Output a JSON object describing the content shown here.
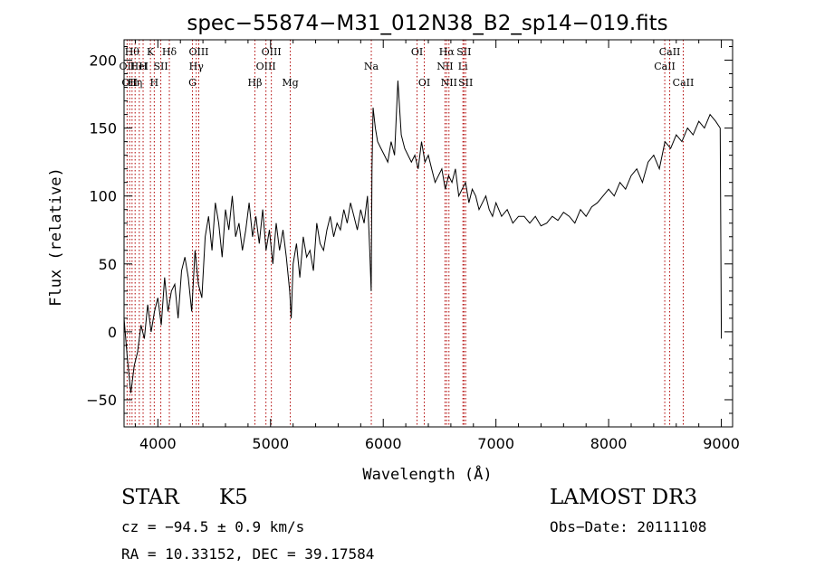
{
  "chart_data": {
    "type": "line",
    "title": "spec−55874−M31_012N38_B2_sp14−019.fits",
    "xlabel": "Wavelength (Å)",
    "ylabel": "Flux (relative)",
    "xlim": [
      3700,
      9100
    ],
    "ylim": [
      -70,
      215
    ],
    "xticks": [
      4000,
      5000,
      6000,
      7000,
      8000,
      9000
    ],
    "yticks": [
      -50,
      0,
      50,
      100,
      150,
      200
    ],
    "grid": false,
    "series": [
      {
        "x": [
          3700,
          3730,
          3760,
          3790,
          3820,
          3850,
          3880,
          3910,
          3940,
          3970,
          4000,
          4030,
          4060,
          4090,
          4120,
          4150,
          4180,
          4210,
          4240,
          4270,
          4300,
          4330,
          4360,
          4390,
          4420,
          4450,
          4480,
          4510,
          4540,
          4570,
          4600,
          4630,
          4660,
          4690,
          4720,
          4750,
          4780,
          4810,
          4840,
          4870,
          4900,
          4930,
          4960,
          4990,
          5020,
          5050,
          5080,
          5110,
          5140,
          5170,
          5183,
          5200,
          5230,
          5260,
          5290,
          5320,
          5350,
          5380,
          5410,
          5440,
          5470,
          5500,
          5530,
          5560,
          5590,
          5620,
          5650,
          5680,
          5710,
          5740,
          5770,
          5800,
          5830,
          5860,
          5880,
          5893,
          5900,
          5910,
          5930,
          5950,
          5980,
          6010,
          6040,
          6070,
          6100,
          6130,
          6160,
          6190,
          6220,
          6250,
          6280,
          6310,
          6340,
          6370,
          6400,
          6430,
          6460,
          6490,
          6520,
          6550,
          6580,
          6610,
          6640,
          6670,
          6700,
          6730,
          6760,
          6790,
          6820,
          6850,
          6880,
          6910,
          6940,
          6970,
          7000,
          7050,
          7100,
          7150,
          7200,
          7250,
          7300,
          7350,
          7400,
          7450,
          7500,
          7550,
          7600,
          7650,
          7700,
          7750,
          7800,
          7850,
          7900,
          7950,
          8000,
          8050,
          8100,
          8150,
          8200,
          8250,
          8300,
          8350,
          8400,
          8450,
          8500,
          8550,
          8600,
          8650,
          8700,
          8750,
          8800,
          8850,
          8900,
          8950,
          8990,
          9000
        ],
        "y": [
          10,
          -20,
          -45,
          -25,
          -15,
          5,
          -5,
          20,
          0,
          15,
          25,
          5,
          40,
          15,
          30,
          35,
          10,
          45,
          55,
          40,
          15,
          60,
          35,
          25,
          70,
          85,
          60,
          95,
          80,
          55,
          90,
          75,
          100,
          70,
          80,
          60,
          75,
          95,
          70,
          85,
          65,
          90,
          60,
          75,
          50,
          80,
          60,
          75,
          55,
          30,
          10,
          50,
          65,
          40,
          70,
          55,
          60,
          45,
          80,
          65,
          60,
          75,
          85,
          70,
          80,
          75,
          90,
          80,
          95,
          85,
          75,
          90,
          80,
          100,
          60,
          30,
          120,
          165,
          150,
          140,
          135,
          130,
          125,
          140,
          130,
          185,
          145,
          135,
          130,
          125,
          130,
          120,
          140,
          125,
          130,
          120,
          110,
          115,
          120,
          105,
          115,
          110,
          120,
          100,
          105,
          110,
          95,
          105,
          100,
          90,
          95,
          100,
          90,
          85,
          95,
          85,
          90,
          80,
          85,
          85,
          80,
          85,
          78,
          80,
          85,
          82,
          88,
          85,
          80,
          90,
          85,
          92,
          95,
          100,
          105,
          100,
          110,
          105,
          115,
          120,
          110,
          125,
          130,
          120,
          140,
          135,
          145,
          140,
          150,
          145,
          155,
          150,
          160,
          155,
          150,
          -5
        ]
      }
    ],
    "lines": [
      {
        "w": 3727,
        "label": "OII",
        "row": 1
      },
      {
        "w": 3750,
        "label": "OII",
        "row": 2
      },
      {
        "w": 3771,
        "label": "Hθ",
        "row": 0
      },
      {
        "w": 3798,
        "label": "Hη",
        "row": 2
      },
      {
        "w": 3835,
        "label": "HeI",
        "row": 1
      },
      {
        "w": 3869,
        "label": "H",
        "row": 1
      },
      {
        "w": 3934,
        "label": "K",
        "row": 0
      },
      {
        "w": 3968,
        "label": "H",
        "row": 2
      },
      {
        "w": 4026,
        "label": "SII",
        "row": 1
      },
      {
        "w": 4102,
        "label": "Hδ",
        "row": 0
      },
      {
        "w": 4307,
        "label": "G",
        "row": 2
      },
      {
        "w": 4341,
        "label": "Hγ",
        "row": 1
      },
      {
        "w": 4363,
        "label": "OIII",
        "row": 0
      },
      {
        "w": 4861,
        "label": "Hβ",
        "row": 2
      },
      {
        "w": 4959,
        "label": "OIII",
        "row": 1
      },
      {
        "w": 5007,
        "label": "OIII",
        "row": 0
      },
      {
        "w": 5175,
        "label": "Mg",
        "row": 2
      },
      {
        "w": 5894,
        "label": "Na",
        "row": 1
      },
      {
        "w": 6300,
        "label": "OI",
        "row": 0
      },
      {
        "w": 6364,
        "label": "OI",
        "row": 2
      },
      {
        "w": 6548,
        "label": "NII",
        "row": 1
      },
      {
        "w": 6563,
        "label": "Hα",
        "row": 0
      },
      {
        "w": 6583,
        "label": "NII",
        "row": 2
      },
      {
        "w": 6707,
        "label": "Li",
        "row": 1
      },
      {
        "w": 6716,
        "label": "SII",
        "row": 0
      },
      {
        "w": 6731,
        "label": "SII",
        "row": 2
      },
      {
        "w": 8498,
        "label": "CaII",
        "row": 1
      },
      {
        "w": 8542,
        "label": "CaII",
        "row": 0
      },
      {
        "w": 8662,
        "label": "CaII",
        "row": 2
      }
    ]
  },
  "info": {
    "class": "STAR",
    "subclass": "K5",
    "survey": "LAMOST DR3",
    "redshift": "cz = −94.5 ± 0.9 km/s",
    "obs_date": "Obs−Date: 20111108",
    "coords": "RA =  10.33152, DEC =  39.17584"
  }
}
